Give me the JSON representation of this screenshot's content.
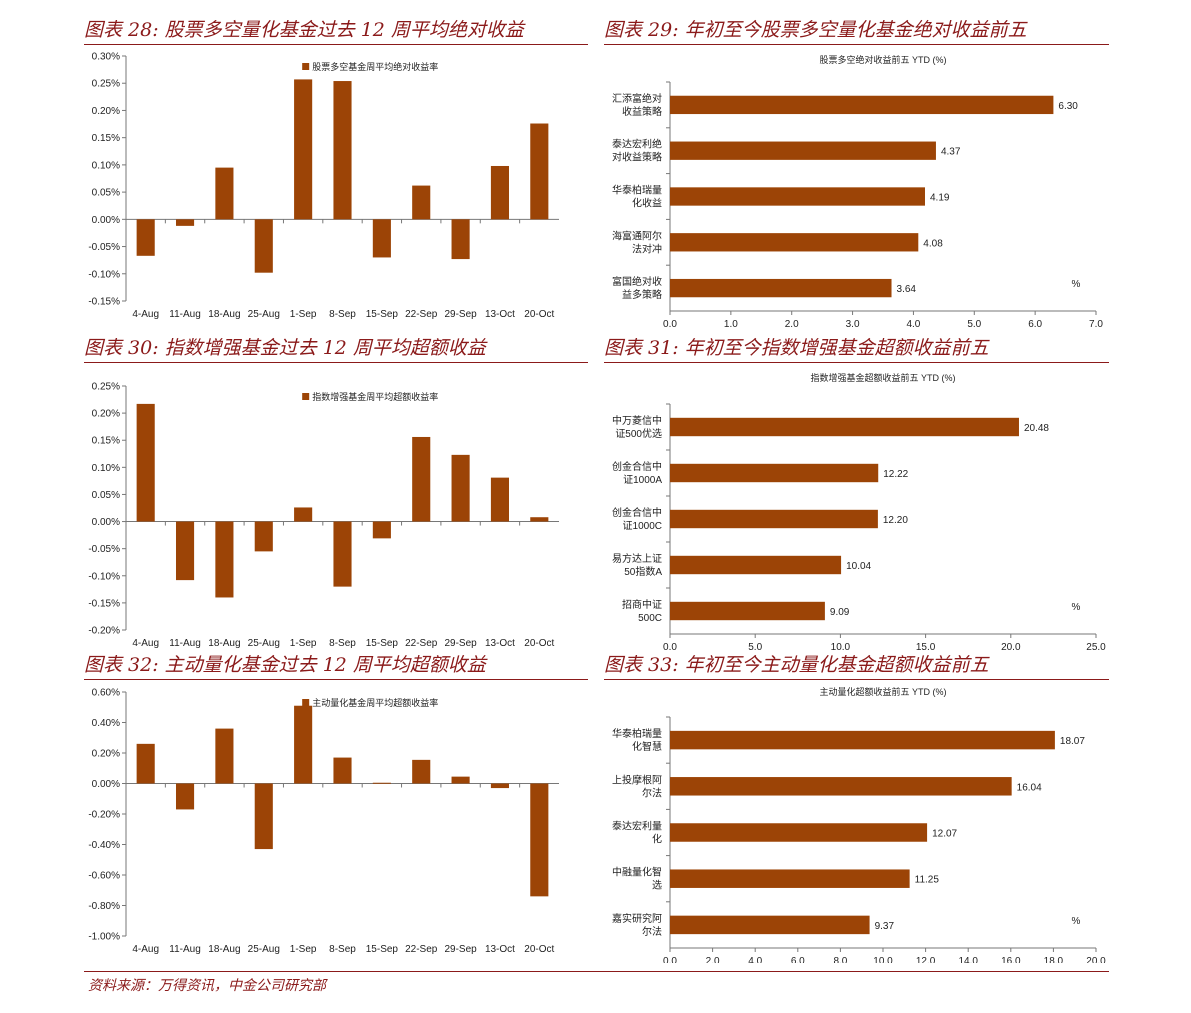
{
  "source_note": "资料来源：万得资讯，中金公司研究部",
  "colors": {
    "bar": "#9c4406",
    "title": "#8b1a1a",
    "axis": "#777777"
  },
  "chart_data": [
    {
      "id": "c28",
      "type": "bar",
      "title": "图表 28: 股票多空量化基金过去 12 周平均绝对收益",
      "legend": "股票多空基金周平均绝对收益率",
      "categories": [
        "4-Aug",
        "11-Aug",
        "18-Aug",
        "25-Aug",
        "1-Sep",
        "8-Sep",
        "15-Sep",
        "22-Sep",
        "29-Sep",
        "13-Oct",
        "20-Oct"
      ],
      "values": [
        -0.067,
        -0.012,
        0.095,
        -0.098,
        0.257,
        0.254,
        -0.07,
        0.062,
        -0.073,
        0.098,
        0.176
      ],
      "ylim": [
        -0.15,
        0.3
      ],
      "yticks": [
        -0.15,
        -0.1,
        -0.05,
        0,
        0.05,
        0.1,
        0.15,
        0.2,
        0.25,
        0.3
      ],
      "ytick_labels": [
        "-0.15%",
        "-0.10%",
        "-0.05%",
        "0.00%",
        "0.05%",
        "0.10%",
        "0.15%",
        "0.20%",
        "0.25%",
        "0.30%"
      ]
    },
    {
      "id": "c29",
      "type": "bar",
      "orientation": "horizontal",
      "title": "图表 29: 年初至今股票多空量化基金绝对收益前五",
      "subtitle": "股票多空绝对收益前五 YTD (%)",
      "unit": "%",
      "categories": [
        [
          "汇添富绝对",
          "收益策略"
        ],
        [
          "泰达宏利绝",
          "对收益策略"
        ],
        [
          "华泰柏瑞量",
          "化收益"
        ],
        [
          "海富通阿尔",
          "法对冲"
        ],
        [
          "富国绝对收",
          "益多策略"
        ]
      ],
      "values": [
        6.3,
        4.37,
        4.19,
        4.08,
        3.64
      ],
      "value_labels": [
        "6.30",
        "4.37",
        "4.19",
        "4.08",
        "3.64"
      ],
      "xlim": [
        0,
        7
      ],
      "xticks": [
        0,
        1,
        2,
        3,
        4,
        5,
        6,
        7
      ],
      "xtick_labels": [
        "0.0",
        "1.0",
        "2.0",
        "3.0",
        "4.0",
        "5.0",
        "6.0",
        "7.0"
      ]
    },
    {
      "id": "c30",
      "type": "bar",
      "title": "图表 30: 指数增强基金过去 12 周平均超额收益",
      "legend": "指数增强基金周平均超额收益率",
      "categories": [
        "4-Aug",
        "11-Aug",
        "18-Aug",
        "25-Aug",
        "1-Sep",
        "8-Sep",
        "15-Sep",
        "22-Sep",
        "29-Sep",
        "13-Oct",
        "20-Oct"
      ],
      "values": [
        0.217,
        -0.108,
        -0.14,
        -0.055,
        0.026,
        -0.12,
        -0.031,
        0.156,
        0.123,
        0.081,
        0.008
      ],
      "ylim": [
        -0.2,
        0.25
      ],
      "yticks": [
        -0.2,
        -0.15,
        -0.1,
        -0.05,
        0,
        0.05,
        0.1,
        0.15,
        0.2,
        0.25
      ],
      "ytick_labels": [
        "-0.20%",
        "-0.15%",
        "-0.10%",
        "-0.05%",
        "0.00%",
        "0.05%",
        "0.10%",
        "0.15%",
        "0.20%",
        "0.25%"
      ]
    },
    {
      "id": "c31",
      "type": "bar",
      "orientation": "horizontal",
      "title": "图表 31: 年初至今指数增强基金超额收益前五",
      "subtitle": "指数增强基金超额收益前五 YTD (%)",
      "unit": "%",
      "categories": [
        [
          "中万菱信中",
          "证500优选"
        ],
        [
          "创金合信中",
          "证1000A"
        ],
        [
          "创金合信中",
          "证1000C"
        ],
        [
          "易方达上证",
          "50指数A"
        ],
        [
          "招商中证",
          "500C"
        ]
      ],
      "values": [
        20.48,
        12.22,
        12.2,
        10.04,
        9.09
      ],
      "value_labels": [
        "20.48",
        "12.22",
        "12.20",
        "10.04",
        "9.09"
      ],
      "xlim": [
        0,
        25
      ],
      "xticks": [
        0,
        5,
        10,
        15,
        20,
        25
      ],
      "xtick_labels": [
        "0.0",
        "5.0",
        "10.0",
        "15.0",
        "20.0",
        "25.0"
      ]
    },
    {
      "id": "c32",
      "type": "bar",
      "title": "图表 32: 主动量化基金过去 12 周平均超额收益",
      "legend": "主动量化基金周平均超额收益率",
      "categories": [
        "4-Aug",
        "11-Aug",
        "18-Aug",
        "25-Aug",
        "1-Sep",
        "8-Sep",
        "15-Sep",
        "22-Sep",
        "29-Sep",
        "13-Oct",
        "20-Oct"
      ],
      "values": [
        0.26,
        -0.17,
        0.36,
        -0.43,
        0.51,
        0.17,
        0.005,
        0.155,
        0.045,
        -0.03,
        -0.74
      ],
      "ylim": [
        -1.0,
        0.6
      ],
      "yticks": [
        -1.0,
        -0.8,
        -0.6,
        -0.4,
        -0.2,
        0,
        0.2,
        0.4,
        0.6
      ],
      "ytick_labels": [
        "-1.00%",
        "-0.80%",
        "-0.60%",
        "-0.40%",
        "-0.20%",
        "0.00%",
        "0.20%",
        "0.40%",
        "0.60%"
      ]
    },
    {
      "id": "c33",
      "type": "bar",
      "orientation": "horizontal",
      "title": "图表 33: 年初至今主动量化基金超额收益前五",
      "subtitle": "主动量化超额收益前五 YTD (%)",
      "unit": "%",
      "categories": [
        [
          "华泰柏瑞量",
          "化智慧"
        ],
        [
          "上投摩根阿",
          "尔法"
        ],
        [
          "泰达宏利量",
          "化"
        ],
        [
          "中融量化智",
          "选"
        ],
        [
          "嘉实研究阿",
          "尔法"
        ]
      ],
      "values": [
        18.07,
        16.04,
        12.07,
        11.25,
        9.37
      ],
      "value_labels": [
        "18.07",
        "16.04",
        "12.07",
        "11.25",
        "9.37"
      ],
      "xlim": [
        0,
        20
      ],
      "xticks": [
        0,
        2,
        4,
        6,
        8,
        10,
        12,
        14,
        16,
        18,
        20
      ],
      "xtick_labels": [
        "0.0",
        "2.0",
        "4.0",
        "6.0",
        "8.0",
        "10.0",
        "12.0",
        "14.0",
        "16.0",
        "18.0",
        "20.0"
      ]
    }
  ]
}
